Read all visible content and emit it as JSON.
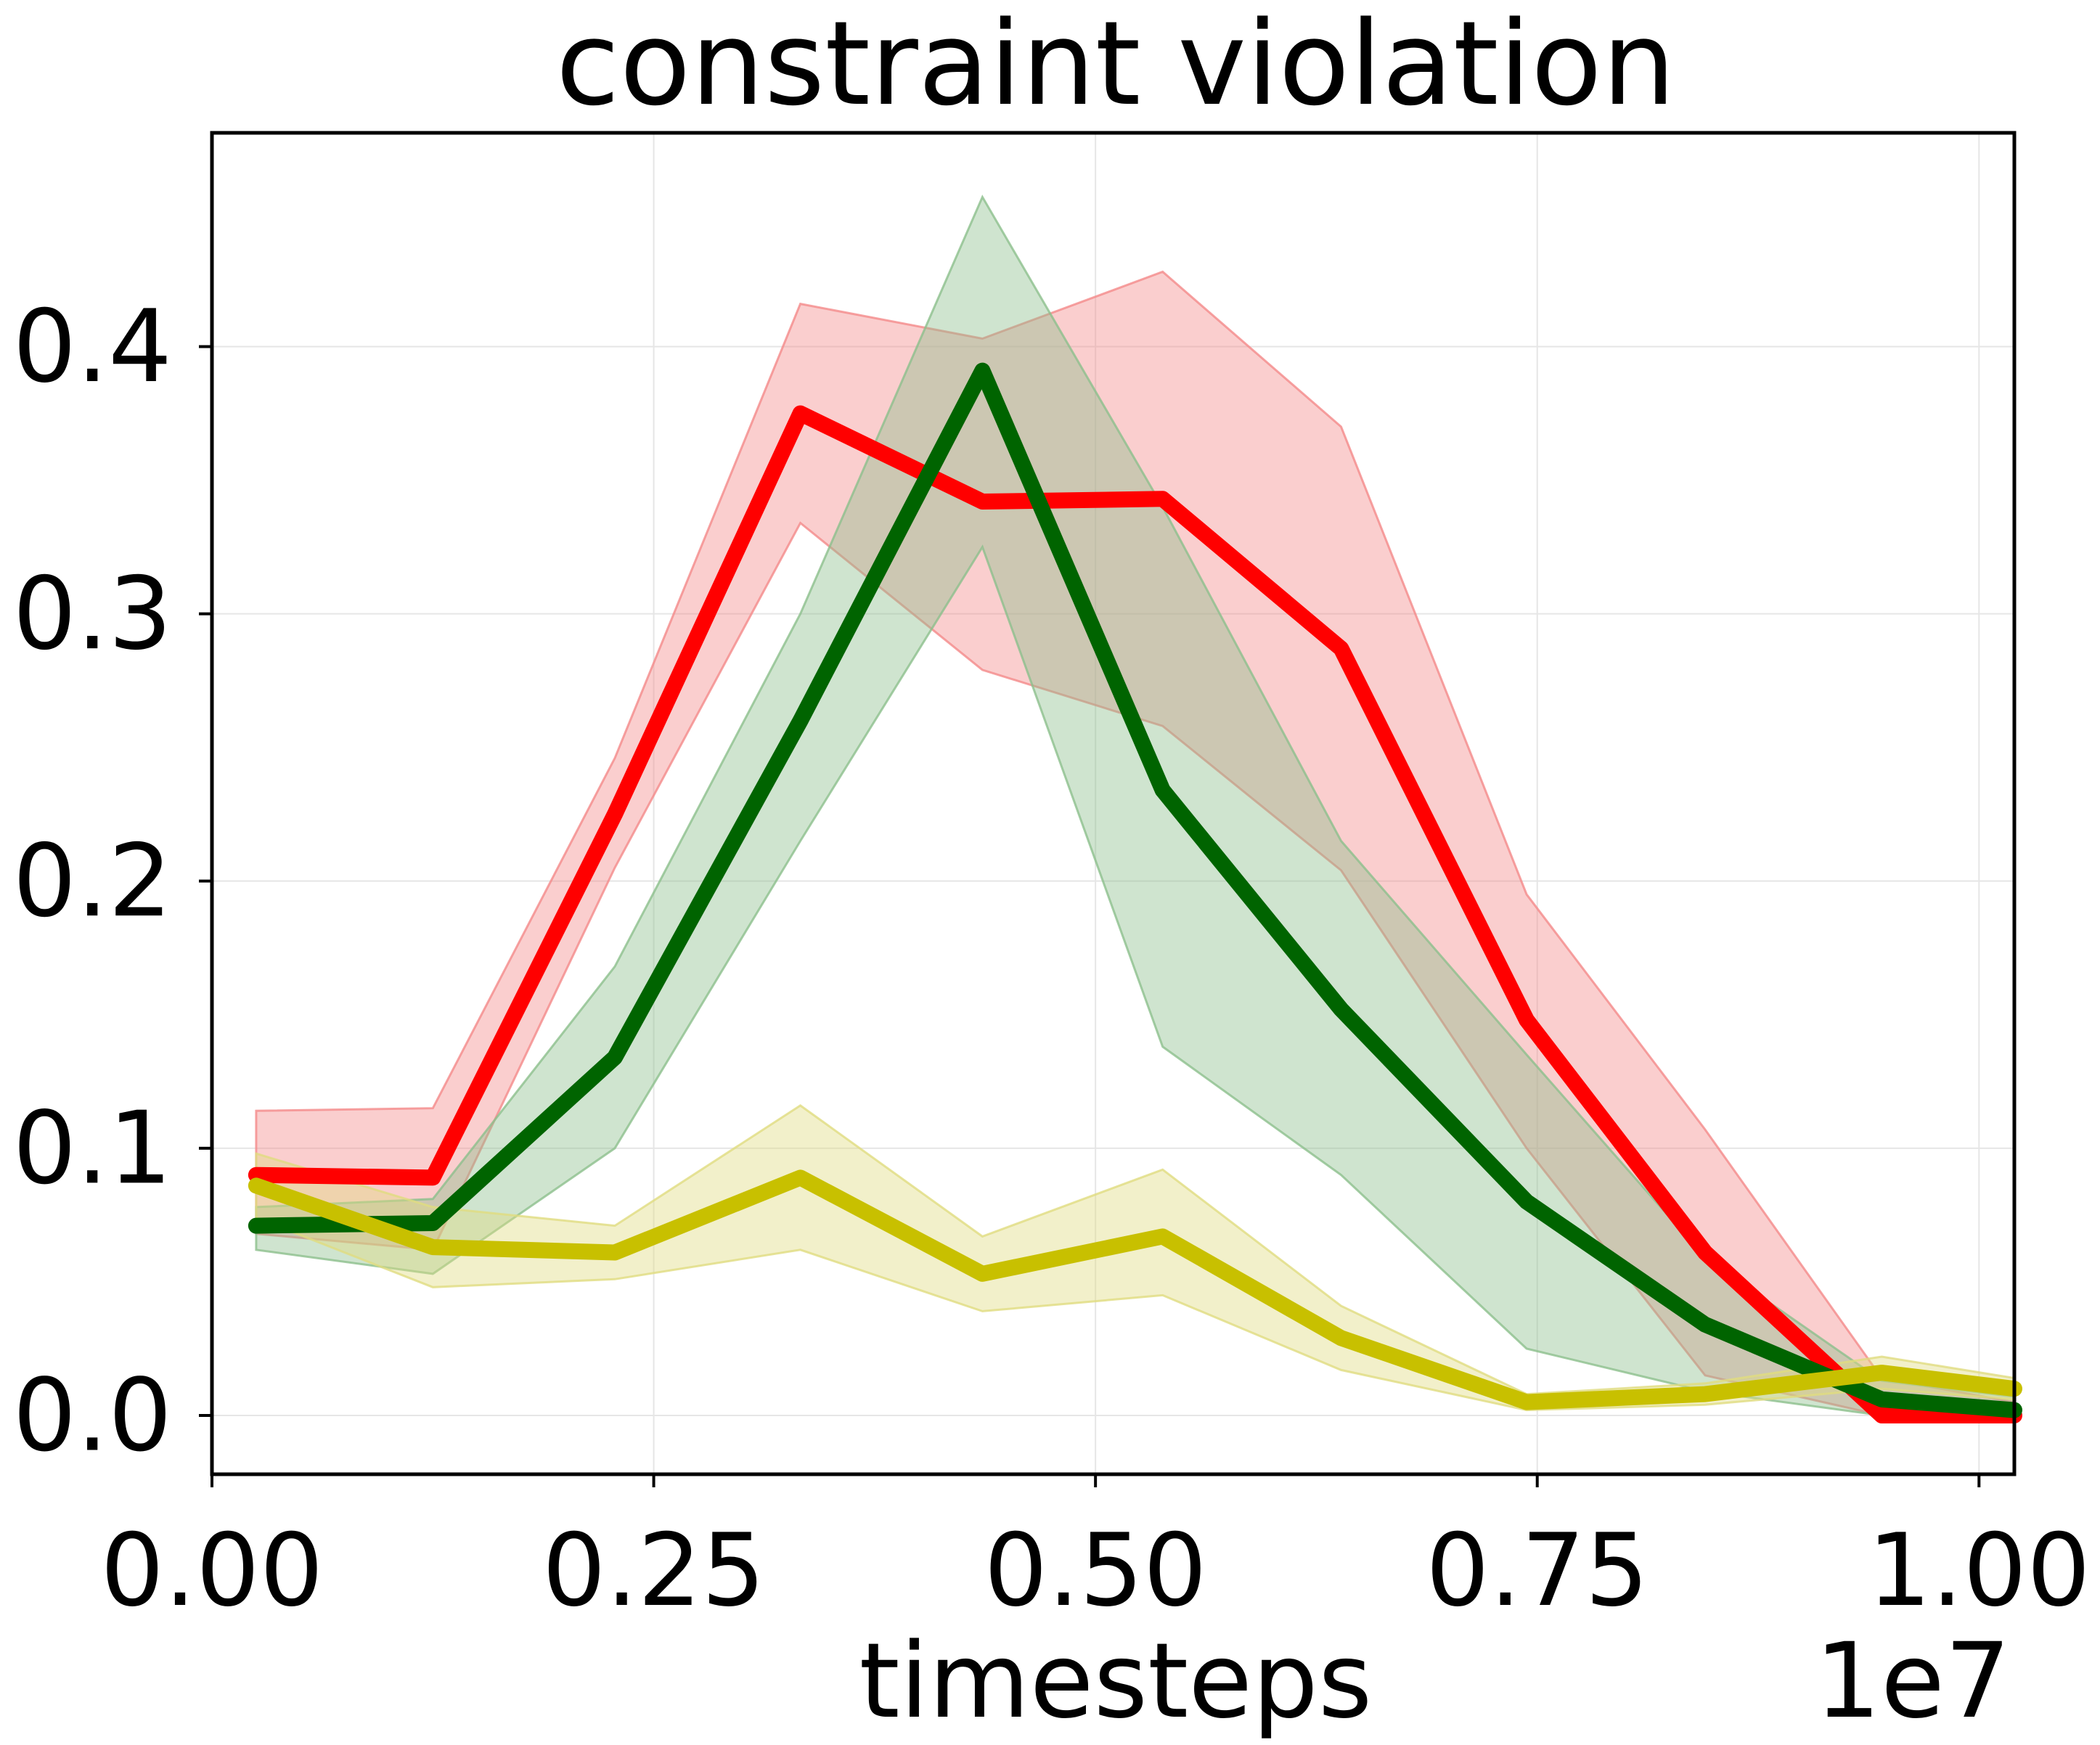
{
  "chart_data": {
    "type": "line",
    "title": "constraint violation",
    "xlabel": "timesteps",
    "ylabel": "",
    "x_offset_text": "1e7",
    "xlim": [
      0.0,
      1.02
    ],
    "ylim": [
      -0.022,
      0.48
    ],
    "xticks": [
      0.0,
      0.25,
      0.5,
      0.75,
      1.0
    ],
    "xtick_labels": [
      "0.00",
      "0.25",
      "0.50",
      "0.75",
      "1.00"
    ],
    "yticks": [
      0.0,
      0.1,
      0.2,
      0.3,
      0.4
    ],
    "ytick_labels": [
      "0.0",
      "0.1",
      "0.2",
      "0.3",
      "0.4"
    ],
    "grid": true,
    "legend": "none",
    "x": [
      0.025,
      0.125,
      0.228,
      0.333,
      0.436,
      0.538,
      0.639,
      0.744,
      0.845,
      0.945,
      1.02
    ],
    "series": [
      {
        "color": "#ff0000",
        "band_color": "#f48a8a",
        "values": [
          0.09,
          0.089,
          0.225,
          0.375,
          0.342,
          0.343,
          0.287,
          0.148,
          0.061,
          0.0,
          0.0
        ],
        "upper": [
          0.114,
          0.115,
          0.246,
          0.416,
          0.403,
          0.428,
          0.37,
          0.195,
          0.107,
          0.014,
          0.005
        ],
        "lower": [
          0.068,
          0.062,
          0.205,
          0.334,
          0.279,
          0.258,
          0.204,
          0.1,
          0.015,
          0.0,
          0.0
        ]
      },
      {
        "color": "#006400",
        "band_color": "#8cbf8c",
        "values": [
          0.071,
          0.072,
          0.134,
          0.26,
          0.391,
          0.234,
          0.152,
          0.08,
          0.034,
          0.006,
          0.002
        ],
        "upper": [
          0.078,
          0.081,
          0.168,
          0.3,
          0.456,
          0.34,
          0.215,
          0.135,
          0.059,
          0.013,
          0.007
        ],
        "lower": [
          0.062,
          0.053,
          0.1,
          0.215,
          0.325,
          0.138,
          0.09,
          0.025,
          0.009,
          0.0,
          0.0
        ]
      },
      {
        "color": "#c8c000",
        "band_color": "#e0dc80",
        "values": [
          0.086,
          0.063,
          0.061,
          0.089,
          0.053,
          0.067,
          0.029,
          0.005,
          0.008,
          0.016,
          0.01
        ],
        "upper": [
          0.098,
          0.078,
          0.071,
          0.116,
          0.067,
          0.092,
          0.041,
          0.008,
          0.012,
          0.022,
          0.014
        ],
        "lower": [
          0.074,
          0.048,
          0.051,
          0.062,
          0.039,
          0.045,
          0.017,
          0.002,
          0.004,
          0.01,
          0.006
        ]
      }
    ]
  }
}
